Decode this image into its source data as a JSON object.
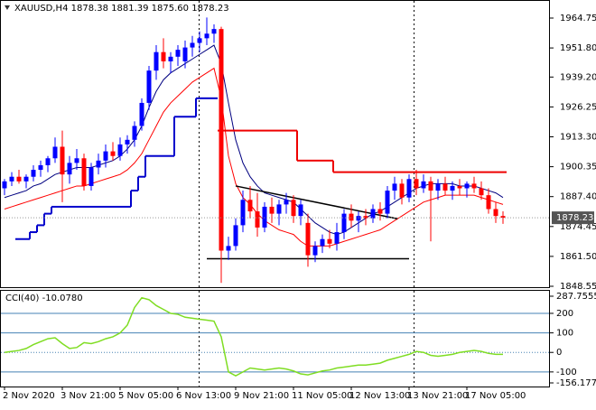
{
  "chart_data": [
    {
      "type": "candlestick",
      "title": "XAUUSD,H4 1878.38 1881.39 1875.60 1878.23",
      "up_color": "#0000ff",
      "down_color": "#ff0000",
      "open": [
        1891,
        1894,
        1896,
        1894,
        1896,
        1899,
        1901,
        1904,
        1909,
        1897,
        1902,
        1904,
        1892,
        1900,
        1903,
        1907,
        1905,
        1910,
        1912,
        1918,
        1928,
        1942,
        1950,
        1946,
        1948,
        1946,
        1952,
        1954,
        1956,
        1958,
        1960,
        1864,
        1866,
        1875,
        1886,
        1881,
        1874,
        1883,
        1880,
        1884,
        1886,
        1879,
        1876,
        1862,
        1866,
        1869,
        1867,
        1872,
        1880,
        1877,
        1879,
        1878,
        1882,
        1880,
        1890,
        1893,
        1887,
        1895,
        1891,
        1894,
        1890,
        1893,
        1890,
        1892,
        1891,
        1893,
        1891,
        1888,
        1882,
        1879
      ],
      "high": [
        1895,
        1898,
        1899,
        1897,
        1901,
        1903,
        1905,
        1913,
        1916,
        1905,
        1908,
        1906,
        1902,
        1906,
        1910,
        1911,
        1913,
        1914,
        1920,
        1930,
        1944,
        1953,
        1956,
        1950,
        1953,
        1955,
        1957,
        1959,
        1965,
        1962,
        1961,
        1870,
        1878,
        1890,
        1892,
        1889,
        1885,
        1887,
        1886,
        1889,
        1888,
        1886,
        1880,
        1868,
        1871,
        1873,
        1876,
        1882,
        1884,
        1881,
        1882,
        1884,
        1885,
        1892,
        1896,
        1895,
        1897,
        1899,
        1897,
        1896,
        1895,
        1896,
        1894,
        1895,
        1894,
        1896,
        1894,
        1891,
        1885,
        1881
      ],
      "low": [
        1888,
        1892,
        1893,
        1891,
        1894,
        1896,
        1898,
        1902,
        1885,
        1893,
        1899,
        1890,
        1890,
        1897,
        1900,
        1903,
        1903,
        1906,
        1909,
        1916,
        1925,
        1938,
        1943,
        1941,
        1944,
        1943,
        1948,
        1950,
        1953,
        1954,
        1850,
        1860,
        1864,
        1872,
        1878,
        1870,
        1872,
        1876,
        1875,
        1880,
        1876,
        1875,
        1857,
        1859,
        1863,
        1865,
        1864,
        1869,
        1874,
        1872,
        1875,
        1876,
        1877,
        1878,
        1886,
        1884,
        1885,
        1888,
        1889,
        1868,
        1886,
        1888,
        1886,
        1888,
        1887,
        1889,
        1886,
        1880,
        1876,
        1875.6
      ],
      "close": [
        1894,
        1896,
        1894,
        1896,
        1899,
        1901,
        1904,
        1909,
        1897,
        1902,
        1904,
        1892,
        1900,
        1903,
        1907,
        1905,
        1910,
        1912,
        1918,
        1928,
        1942,
        1950,
        1946,
        1948,
        1951,
        1952,
        1954,
        1956,
        1958,
        1960,
        1864,
        1866,
        1875,
        1886,
        1881,
        1874,
        1883,
        1880,
        1884,
        1886,
        1879,
        1884,
        1862,
        1866,
        1869,
        1867,
        1872,
        1880,
        1877,
        1879,
        1878,
        1882,
        1880,
        1890,
        1893,
        1887,
        1895,
        1891,
        1894,
        1890,
        1893,
        1890,
        1892,
        1891,
        1893,
        1891,
        1888,
        1882,
        1879,
        1878.23
      ],
      "series": [
        {
          "color": "#ff0000",
          "line_width": 1,
          "values": [
            1882,
            1883,
            1884,
            1885,
            1886,
            1887,
            1888,
            1889,
            1890,
            1891,
            1892,
            1892,
            1893,
            1894,
            1895,
            1896,
            1897,
            1899,
            1902,
            1906,
            1912,
            1918,
            1924,
            1928,
            1931,
            1934,
            1937,
            1939,
            1941,
            1943,
            1930,
            1905,
            1893,
            1887,
            1884,
            1880,
            1877,
            1875,
            1873,
            1872,
            1871,
            1868,
            1866,
            1866,
            1866,
            1866,
            1867,
            1868,
            1869,
            1870,
            1871,
            1872,
            1873,
            1875,
            1877,
            1879,
            1881,
            1883,
            1885,
            1886,
            1887,
            1888,
            1888,
            1888,
            1888,
            1888,
            1887,
            1886,
            1885,
            1884
          ]
        },
        {
          "color": "#000080",
          "line_width": 1,
          "values": [
            1887,
            1888,
            1889,
            1890,
            1892,
            1893,
            1895,
            1897,
            1898,
            1899,
            1900,
            1900,
            1900,
            1901,
            1902,
            1903,
            1905,
            1908,
            1912,
            1918,
            1926,
            1933,
            1938,
            1941,
            1943,
            1945,
            1947,
            1949,
            1951,
            1953,
            1945,
            1928,
            1912,
            1902,
            1896,
            1892,
            1889,
            1888,
            1887,
            1886,
            1885,
            1882,
            1879,
            1876,
            1874,
            1872,
            1871,
            1872,
            1874,
            1876,
            1878,
            1880,
            1881,
            1883,
            1885,
            1887,
            1889,
            1891,
            1892,
            1893,
            1893,
            1893,
            1893,
            1892,
            1892,
            1892,
            1891,
            1890,
            1889,
            1887
          ]
        },
        {
          "color": "#0000cc",
          "line_width": 2,
          "step": true,
          "values": [
            null,
            null,
            1869,
            1869,
            1872,
            1875,
            1880,
            1883,
            1883,
            1883,
            1883,
            1883,
            1883,
            1883,
            1883,
            1883,
            1883,
            1883,
            1890,
            1896,
            1905,
            1905,
            1905,
            1905,
            1922,
            1922,
            1922,
            1930,
            1930,
            1930,
            null,
            null,
            null,
            null,
            null,
            null,
            null,
            null,
            null,
            null,
            null,
            null,
            null,
            null,
            null,
            null,
            null,
            null,
            null,
            null,
            null,
            null,
            null,
            null,
            null,
            null,
            null,
            null,
            null,
            null,
            null,
            null,
            null,
            null,
            null,
            null,
            null,
            null,
            null,
            null
          ]
        },
        {
          "color": "#ee0000",
          "line_width": 2,
          "step": true,
          "values": [
            null,
            null,
            null,
            null,
            null,
            null,
            null,
            null,
            null,
            null,
            null,
            null,
            null,
            null,
            null,
            null,
            null,
            null,
            null,
            null,
            null,
            null,
            null,
            null,
            null,
            null,
            null,
            null,
            null,
            null,
            1916,
            1916,
            1916,
            1916,
            1916,
            1916,
            1916,
            1916,
            1916,
            1916,
            1916,
            1903,
            1903,
            1903,
            1903,
            1903,
            1898,
            1898,
            1898,
            1898,
            1898,
            1898,
            1898,
            1898,
            1898,
            1898,
            1898,
            1898,
            1898,
            1898,
            1898,
            1898,
            1898,
            1898,
            1898,
            1898,
            1898,
            1898,
            1898,
            1898
          ]
        }
      ],
      "trendlines": [
        {
          "color": "#000000",
          "x": [
            32,
            54.4
          ],
          "y": [
            1892,
            1877.8
          ]
        },
        {
          "color": "#000000",
          "x": [
            28,
            56
          ],
          "y": [
            1860.5,
            1860.5
          ]
        }
      ],
      "ylim": [
        1848.55,
        1964.75
      ],
      "yticks": [
        1964.75,
        {
          "value": 1951.8,
          "label": "1951.80"
        },
        {
          "value": 1939.2,
          "label": "1939.20"
        },
        1926.25,
        {
          "value": 1913.3,
          "label": "1913.30"
        },
        1900.35,
        {
          "value": 1887.4,
          "label": "1887.40"
        },
        1874.45,
        {
          "value": 1861.5,
          "label": "1861.50"
        },
        1848.55
      ],
      "xticks": [
        {
          "value": 0,
          "label": "2 Nov 2020"
        },
        {
          "value": 8,
          "label": "3 Nov 21:00"
        },
        {
          "value": 16,
          "label": "5 Nov 05:00"
        },
        {
          "value": 24,
          "label": "6 Nov 13:00"
        },
        {
          "value": 32,
          "label": "9 Nov 21:00"
        },
        {
          "value": 40,
          "label": "11 Nov 05:00"
        },
        {
          "value": 48,
          "label": "12 Nov 13:00"
        },
        {
          "value": 56,
          "label": "13 Nov 21:00"
        },
        {
          "value": 64,
          "label": "17 Nov 05:00"
        }
      ]
    },
    {
      "type": "line",
      "title": "CCI(40) -10.0780",
      "color": "#7fdd22",
      "values": [
        0,
        5,
        10,
        20,
        40,
        55,
        70,
        75,
        45,
        20,
        25,
        50,
        45,
        55,
        70,
        80,
        100,
        140,
        230,
        280,
        270,
        240,
        220,
        200,
        195,
        180,
        175,
        170,
        165,
        160,
        80,
        -100,
        -120,
        -100,
        -80,
        -85,
        -90,
        -85,
        -80,
        -85,
        -95,
        -110,
        -115,
        -105,
        -95,
        -90,
        -80,
        -75,
        -70,
        -65,
        -65,
        -60,
        -55,
        -40,
        -30,
        -20,
        -10,
        5,
        0,
        -15,
        -20,
        -15,
        -10,
        0,
        5,
        10,
        5,
        -5,
        -10,
        -10.078
      ],
      "ylim": [
        -156.1775,
        287.7555
      ],
      "yticks": [
        -156.1775,
        -100,
        0,
        100,
        200,
        287.7555
      ],
      "levels_color": "#4682b4"
    }
  ]
}
